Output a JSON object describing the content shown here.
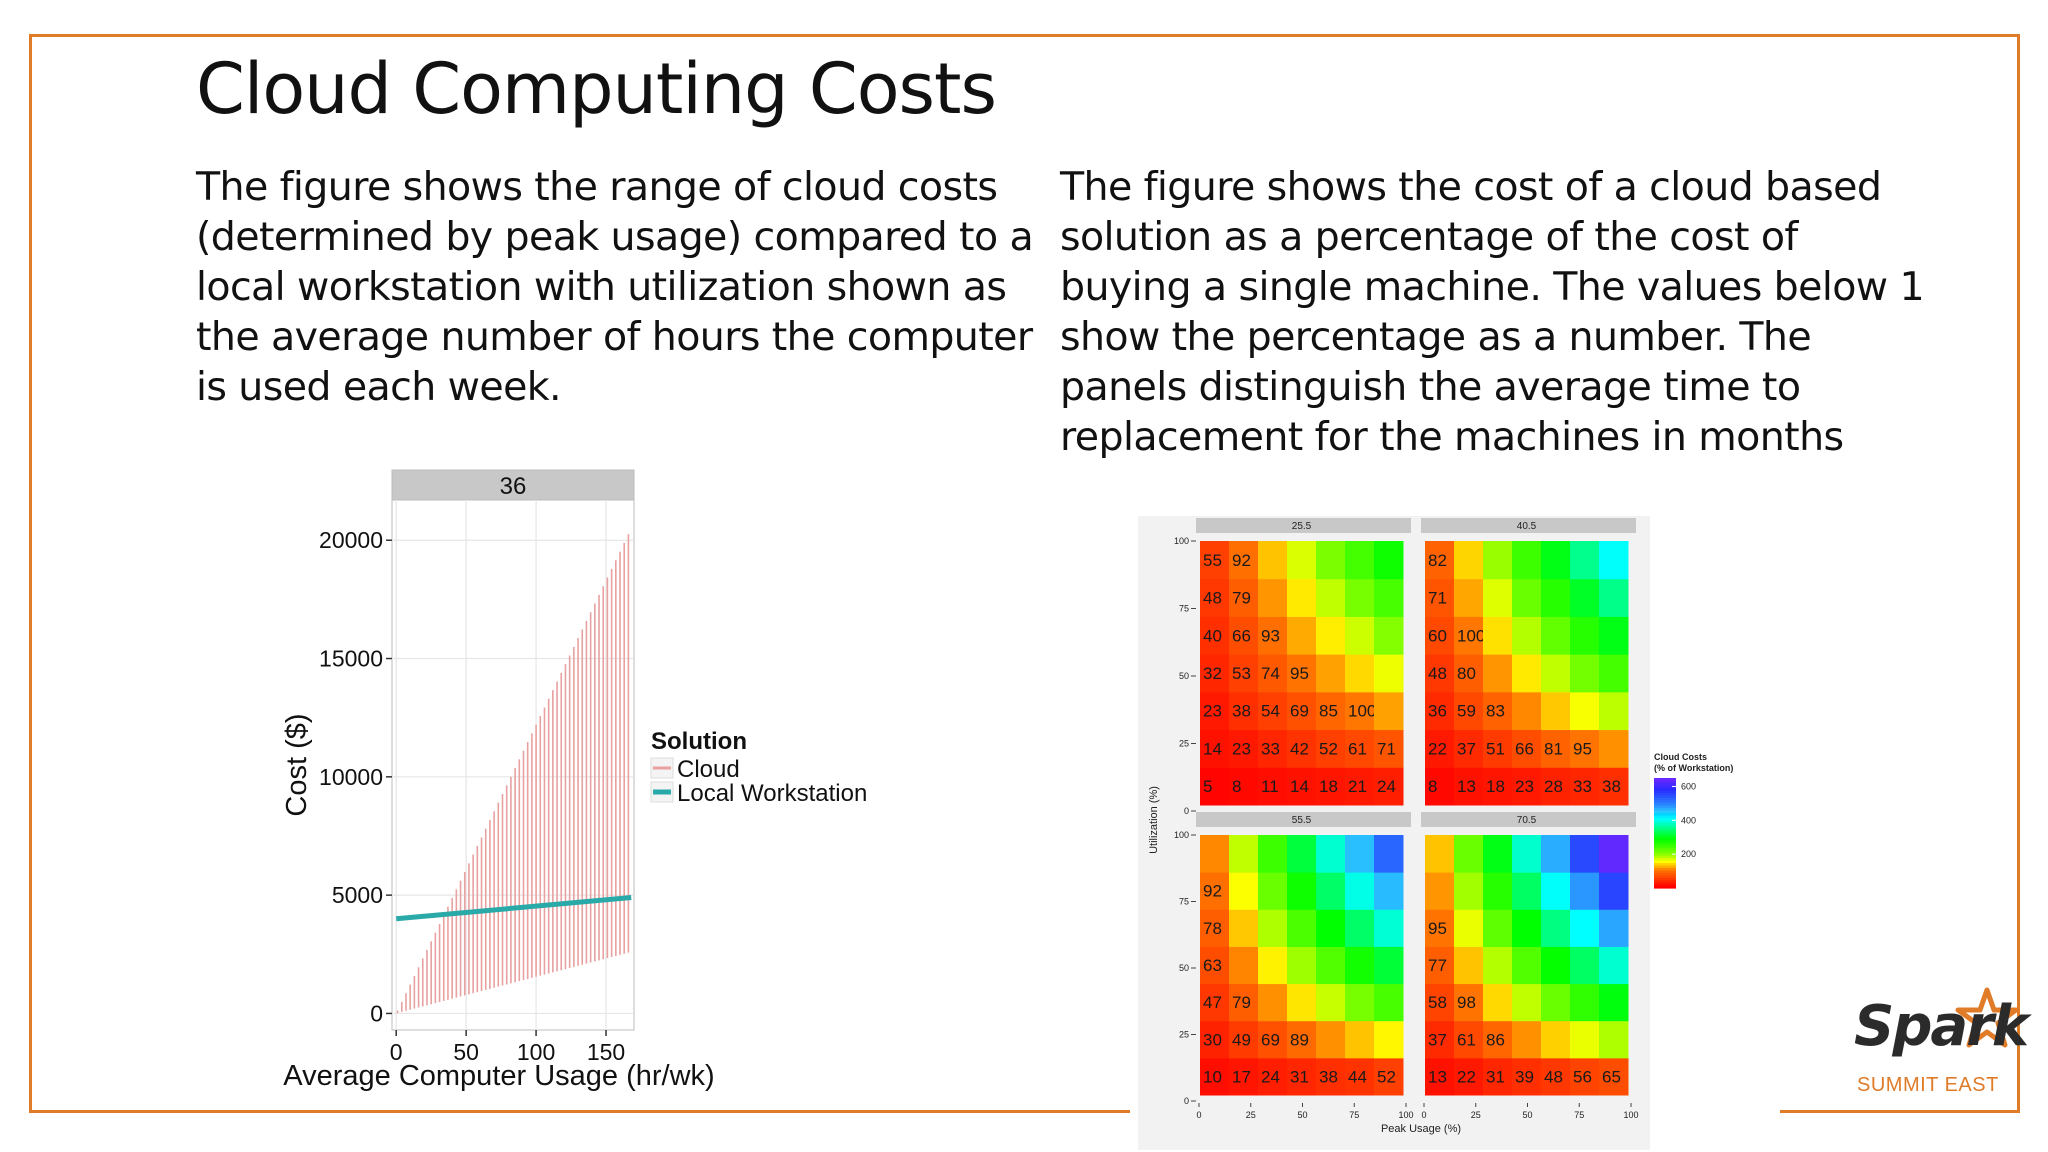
{
  "slide": {
    "title": "Cloud Computing Costs",
    "left_text": [
      "The figure shows the range of cloud costs",
      "(determined by peak usage) compared to a",
      "local workstation with utilization shown as",
      "the average number of hours the computer",
      "is used each week."
    ],
    "right_text": [
      "The figure shows the cost of a cloud based",
      "solution as a percentage of the cost of",
      "buying a single machine. The values below 1",
      "show the percentage as a number. The",
      "panels distinguish the average time to",
      "replacement for the machines in months"
    ],
    "accent_color": "#e07b28"
  },
  "logo": {
    "word": "Spark",
    "sub": "SUMMIT EAST",
    "star_color": "#e07b28"
  },
  "chart_data": [
    {
      "type": "bar",
      "facet_label": "36",
      "xlabel": "Average Computer Usage (hr/wk)",
      "ylabel": "Cost ($)",
      "xlim": [
        -3,
        170
      ],
      "ylim": [
        -700,
        21700
      ],
      "x_ticks": [
        0,
        50,
        100,
        150
      ],
      "y_ticks": [
        0,
        5000,
        10000,
        15000,
        20000
      ],
      "grid": true,
      "legend": {
        "title": "Solution",
        "position": "right",
        "entries": [
          {
            "label": "Cloud",
            "color": "#e8a0a0"
          },
          {
            "label": "Local Workstation",
            "color": "#2aa9a9"
          }
        ]
      },
      "cloud_ranges": {
        "x_start": 1,
        "x_end": 168,
        "x_step": 3,
        "low_at_start": 20,
        "low_at_end": 2600,
        "high_per_hour": 122
      },
      "local_workstation": {
        "x": [
          0,
          168
        ],
        "y": [
          4000,
          4900
        ]
      }
    },
    {
      "type": "heatmap",
      "xlabel": "Peak Usage (%)",
      "ylabel": "Utilization (%)",
      "x_ticks": [
        0,
        25,
        50,
        75,
        100
      ],
      "y_ticks": [
        0,
        25,
        50,
        75,
        100
      ],
      "legend": {
        "title": "Cloud Costs",
        "subtitle": "(% of Workstation)",
        "ticks": [
          200,
          400,
          600
        ],
        "range": [
          0,
          650
        ]
      },
      "panels": [
        {
          "label": "25.5",
          "labels": [
            [
              "5",
              "8",
              "11",
              "14",
              "18",
              "21",
              "24"
            ],
            [
              "14",
              "23",
              "33",
              "42",
              "52",
              "61",
              "71"
            ],
            [
              "23",
              "38",
              "54",
              "69",
              "85",
              "100",
              ""
            ],
            [
              "32",
              "53",
              "74",
              "95",
              "",
              "",
              ""
            ],
            [
              "40",
              "66",
              "93",
              "",
              "",
              "",
              ""
            ],
            [
              "48",
              "79",
              "",
              "",
              "",
              "",
              ""
            ],
            [
              "55",
              "92",
              "",
              "",
              "",
              "",
              ""
            ]
          ],
          "values": [
            [
              5,
              8,
              11,
              14,
              18,
              21,
              24
            ],
            [
              14,
              23,
              33,
              42,
              52,
              61,
              71
            ],
            [
              23,
              38,
              54,
              69,
              85,
              100,
              116
            ],
            [
              32,
              53,
              74,
              95,
              116,
              137,
              158
            ],
            [
              40,
              66,
              93,
              119,
              145,
              171,
              198
            ],
            [
              48,
              79,
              111,
              143,
              175,
              206,
              238
            ],
            [
              55,
              92,
              129,
              166,
              203,
              240,
              278
            ]
          ]
        },
        {
          "label": "40.5",
          "labels": [
            [
              "8",
              "13",
              "18",
              "23",
              "28",
              "33",
              "38"
            ],
            [
              "22",
              "37",
              "51",
              "66",
              "81",
              "95",
              ""
            ],
            [
              "36",
              "59",
              "83",
              "",
              "",
              "",
              ""
            ],
            [
              "48",
              "80",
              "",
              "",
              "",
              "",
              ""
            ],
            [
              "60",
              "100",
              "",
              "",
              "",
              "",
              ""
            ],
            [
              "71",
              "",
              "",
              "",
              "",
              "",
              ""
            ],
            [
              "82",
              "",
              "",
              "",
              "",
              "",
              ""
            ]
          ],
          "values": [
            [
              8,
              13,
              18,
              23,
              28,
              33,
              38
            ],
            [
              22,
              37,
              51,
              66,
              81,
              95,
              110
            ],
            [
              36,
              59,
              83,
              107,
              131,
              155,
              178
            ],
            [
              48,
              80,
              112,
              144,
              176,
              209,
              241
            ],
            [
              60,
              100,
              140,
              180,
              220,
              260,
              300
            ],
            [
              71,
              118,
              165,
              213,
              260,
              307,
              354
            ],
            [
              82,
              136,
              191,
              246,
              300,
              355,
              410
            ]
          ]
        },
        {
          "label": "55.5",
          "labels": [
            [
              "10",
              "17",
              "24",
              "31",
              "38",
              "44",
              "52"
            ],
            [
              "30",
              "49",
              "69",
              "89",
              "",
              "",
              ""
            ],
            [
              "47",
              "79",
              "",
              "",
              "",
              "",
              ""
            ],
            [
              "63",
              "",
              "",
              "",
              "",
              "",
              ""
            ],
            [
              "78",
              "",
              "",
              "",
              "",
              "",
              ""
            ],
            [
              "92",
              "",
              "",
              "",
              "",
              "",
              ""
            ],
            [
              "",
              "",
              "",
              "",
              "",
              "",
              ""
            ]
          ],
          "values": [
            [
              10,
              17,
              24,
              31,
              38,
              44,
              52
            ],
            [
              30,
              49,
              69,
              89,
              109,
              129,
              148
            ],
            [
              47,
              79,
              110,
              142,
              173,
              205,
              236
            ],
            [
              63,
              105,
              147,
              189,
              231,
              273,
              315
            ],
            [
              78,
              130,
              182,
              234,
              286,
              338,
              390
            ],
            [
              92,
              153,
              215,
              276,
              337,
              398,
              460
            ],
            [
              106,
              176,
              247,
              317,
              388,
              458,
              528
            ]
          ]
        },
        {
          "label": "70.5",
          "labels": [
            [
              "13",
              "22",
              "31",
              "39",
              "48",
              "56",
              "65"
            ],
            [
              "37",
              "61",
              "86",
              "",
              "",
              "",
              ""
            ],
            [
              "58",
              "98",
              "",
              "",
              "",
              "",
              ""
            ],
            [
              "77",
              "",
              "",
              "",
              "",
              "",
              ""
            ],
            [
              "95",
              "",
              "",
              "",
              "",
              "",
              ""
            ],
            [
              "",
              "",
              "",
              "",
              "",
              "",
              ""
            ],
            [
              "",
              "",
              "",
              "",
              "",
              "",
              ""
            ]
          ],
          "values": [
            [
              13,
              22,
              31,
              39,
              48,
              56,
              65
            ],
            [
              37,
              61,
              86,
              110,
              134,
              159,
              183
            ],
            [
              58,
              98,
              137,
              176,
              215,
              254,
              293
            ],
            [
              77,
              129,
              181,
              232,
              284,
              335,
              387
            ],
            [
              95,
              159,
              222,
              286,
              349,
              413,
              476
            ],
            [
              112,
              187,
              261,
              336,
              411,
              485,
              560
            ],
            [
              129,
              214,
              300,
              386,
              471,
              557,
              642
            ]
          ]
        }
      ]
    }
  ]
}
